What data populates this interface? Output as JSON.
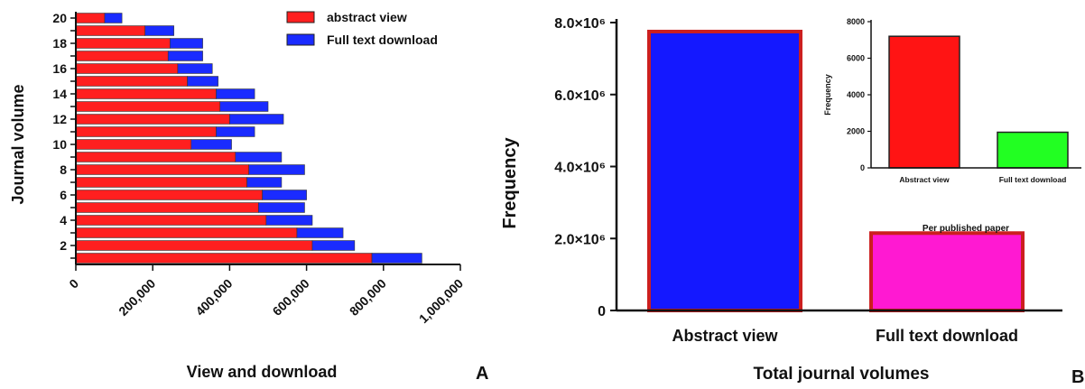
{
  "panels": {
    "a_label": "A",
    "b_label": "B"
  },
  "colors": {
    "abstract": "#ff1f1f",
    "fulltext": "#1a2bff",
    "b_abstract": "#1418ff",
    "b_fulltext": "#ff19d2",
    "b_border": "#cc1f1f",
    "inset_abstract": "#ff1414",
    "inset_fulltext": "#22ff22"
  },
  "chart_data": [
    {
      "type": "bar",
      "orientation": "horizontal",
      "stacked": true,
      "xlabel": "View and download",
      "ylabel": "Journal volume",
      "xlim": [
        0,
        1000000
      ],
      "xticks": [
        "0",
        "200,000",
        "400,000",
        "600,000",
        "800,000",
        "1,000,000"
      ],
      "yticks": [
        "2",
        "4",
        "6",
        "8",
        "10",
        "12",
        "14",
        "16",
        "18",
        "20"
      ],
      "categories": [
        1,
        2,
        3,
        4,
        5,
        6,
        7,
        8,
        9,
        10,
        11,
        12,
        13,
        14,
        15,
        16,
        17,
        18,
        19,
        20
      ],
      "series": [
        {
          "name": "abstract view",
          "values": [
            770000,
            615000,
            575000,
            495000,
            475000,
            485000,
            445000,
            450000,
            415000,
            300000,
            365000,
            400000,
            375000,
            365000,
            290000,
            265000,
            240000,
            245000,
            180000,
            75000
          ]
        },
        {
          "name": "Full text download",
          "values": [
            130000,
            110000,
            120000,
            120000,
            120000,
            115000,
            90000,
            145000,
            120000,
            105000,
            100000,
            140000,
            125000,
            100000,
            80000,
            90000,
            90000,
            85000,
            75000,
            45000
          ]
        }
      ],
      "legend": "top-right"
    },
    {
      "type": "bar",
      "xlabel": "Total journal volumes",
      "ylabel": "Frequency",
      "ylim": [
        0,
        8000000
      ],
      "yticks": [
        "0",
        "2.0×10⁶",
        "4.0×10⁶",
        "6.0×10⁶",
        "8.0×10⁶"
      ],
      "categories": [
        "Abstract view",
        "Full text download"
      ],
      "values": [
        7750000,
        2150000
      ]
    },
    {
      "type": "bar",
      "inset": true,
      "xlabel": "Per published paper",
      "ylabel": "Frequency",
      "ylim": [
        0,
        8000
      ],
      "yticks": [
        "0",
        "2000",
        "4000",
        "6000",
        "8000"
      ],
      "categories": [
        "Abstract view",
        "Full text download"
      ],
      "values": [
        7200,
        1950
      ]
    }
  ]
}
